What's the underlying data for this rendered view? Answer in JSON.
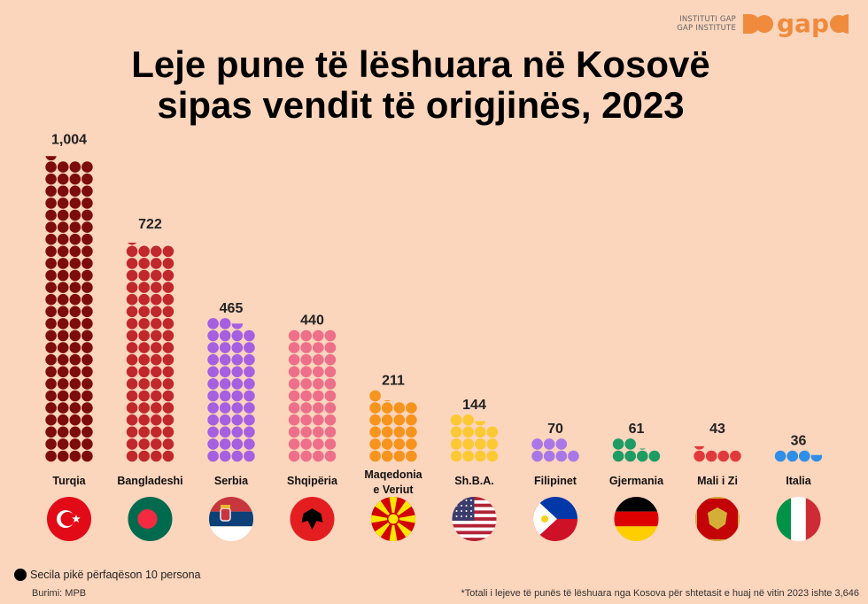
{
  "logo": {
    "line1": "INSTITUTI GAP",
    "line2": "GAP INSTITUTE",
    "word": "gap"
  },
  "title_line1": "Leje pune të lëshuara në Kosovë",
  "title_line2": "sipas vendit të origjinës, 2023",
  "legend_text": "Secila pikë përfaqëson 10 persona",
  "source_text": "Burimi: MPB",
  "footnote_text": "*Totali i lejeve të punës të lëshuara nga Kosova për shtetasit e huaj në vitin 2023 ishte 3,646",
  "chart_data": {
    "type": "bar",
    "unit_per_dot": 10,
    "categories": [
      "Turqia",
      "Bangladeshi",
      "Serbia",
      "Shqipëria",
      "Maqedonia e Veriut",
      "Sh.B.A.",
      "Filipinet",
      "Gjermania",
      "Mali i Zi",
      "Italia"
    ],
    "value_labels": [
      "1,004",
      "722",
      "465",
      "440",
      "211",
      "144",
      "70",
      "61",
      "43",
      "36"
    ],
    "values": [
      1004,
      722,
      465,
      440,
      211,
      144,
      70,
      61,
      43,
      36
    ],
    "colors": [
      "#7d0d0d",
      "#c0282c",
      "#a65fe0",
      "#ee6f8a",
      "#f7941d",
      "#fcc934",
      "#a977e8",
      "#1d9c63",
      "#e03a3c",
      "#2f8ee8"
    ],
    "flags": [
      "turkey-flag",
      "bangladesh-flag",
      "serbia-flag",
      "albania-flag",
      "north-macedonia-flag",
      "usa-flag",
      "philippines-flag",
      "germany-flag",
      "montenegro-flag",
      "italy-flag"
    ]
  }
}
